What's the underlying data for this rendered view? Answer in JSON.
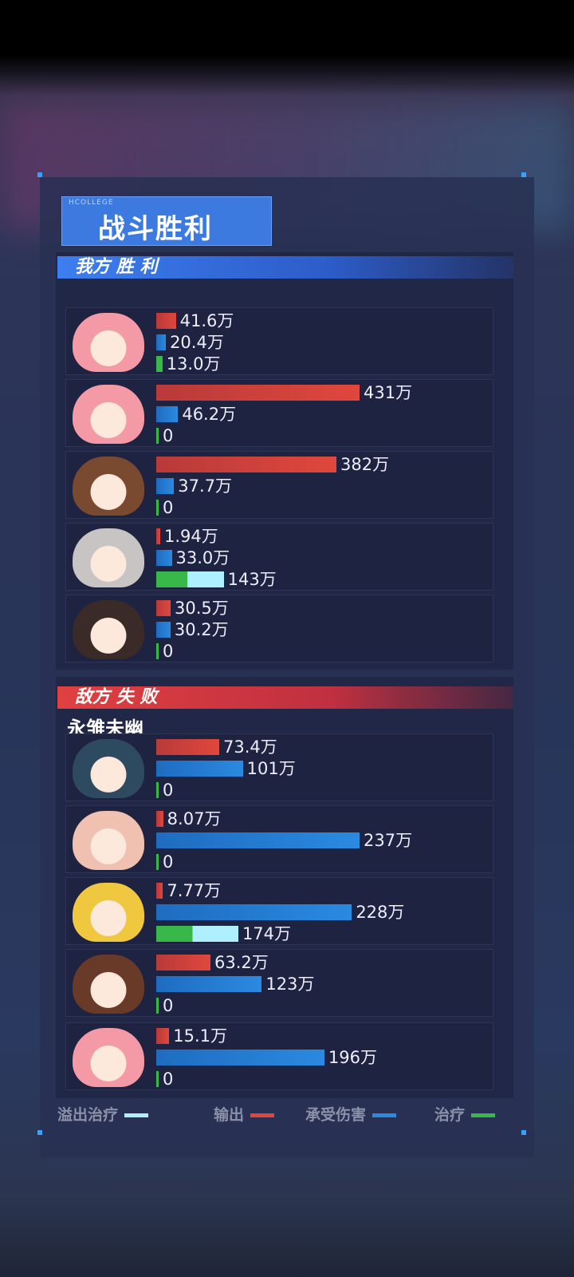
{
  "title": {
    "brand": "HCOLLEGE",
    "text": "战斗胜利"
  },
  "colors": {
    "output": "#e0473c",
    "taken": "#2a8ae0",
    "heal": "#38b848",
    "overflow": "#aef0ff"
  },
  "scale_max": 431,
  "ours": {
    "label": "我方  胜 利",
    "players": [
      {
        "avatar_color": "#f49aa6",
        "output": 41.6,
        "output_label": "41.6万",
        "taken": 20.4,
        "taken_label": "20.4万",
        "heal": 13.0,
        "heal_label": "13.0万"
      },
      {
        "avatar_color": "#f49aa6",
        "output": 431,
        "output_label": "431万",
        "taken": 46.2,
        "taken_label": "46.2万",
        "heal": 0,
        "heal_label": "0"
      },
      {
        "avatar_color": "#7a4a30",
        "output": 382,
        "output_label": "382万",
        "taken": 37.7,
        "taken_label": "37.7万",
        "heal": 0,
        "heal_label": "0"
      },
      {
        "avatar_color": "#c8c4c4",
        "output": 1.94,
        "output_label": "1.94万",
        "taken": 33.0,
        "taken_label": "33.0万",
        "heal": 143,
        "heal_label": "143万",
        "heal_effective_fraction": 0.46
      },
      {
        "avatar_color": "#3a2a28",
        "output": 30.5,
        "output_label": "30.5万",
        "taken": 30.2,
        "taken_label": "30.2万",
        "heal": 0,
        "heal_label": "0"
      }
    ]
  },
  "enemy": {
    "label": "敌方  失 败",
    "name": "永雏未幽",
    "scale_max": 237,
    "players": [
      {
        "avatar_color": "#2e4a60",
        "output": 73.4,
        "output_label": "73.4万",
        "taken": 101,
        "taken_label": "101万",
        "heal": 0,
        "heal_label": "0"
      },
      {
        "avatar_color": "#f0c0b0",
        "output": 8.07,
        "output_label": "8.07万",
        "taken": 237,
        "taken_label": "237万",
        "heal": 0,
        "heal_label": "0"
      },
      {
        "avatar_color": "#f0c840",
        "output": 7.77,
        "output_label": "7.77万",
        "taken": 228,
        "taken_label": "228万",
        "heal": 174,
        "heal_label": "174万",
        "heal_effective_fraction": 0.44
      },
      {
        "avatar_color": "#6a3a28",
        "output": 63.2,
        "output_label": "63.2万",
        "taken": 123,
        "taken_label": "123万",
        "heal": 0,
        "heal_label": "0"
      },
      {
        "avatar_color": "#f49aa6",
        "output": 15.1,
        "output_label": "15.1万",
        "taken": 196,
        "taken_label": "196万",
        "heal": 0,
        "heal_label": "0"
      }
    ]
  },
  "legend": {
    "overflow": "溢出治疗",
    "output": "输出",
    "taken": "承受伤害",
    "heal": "治疗"
  }
}
